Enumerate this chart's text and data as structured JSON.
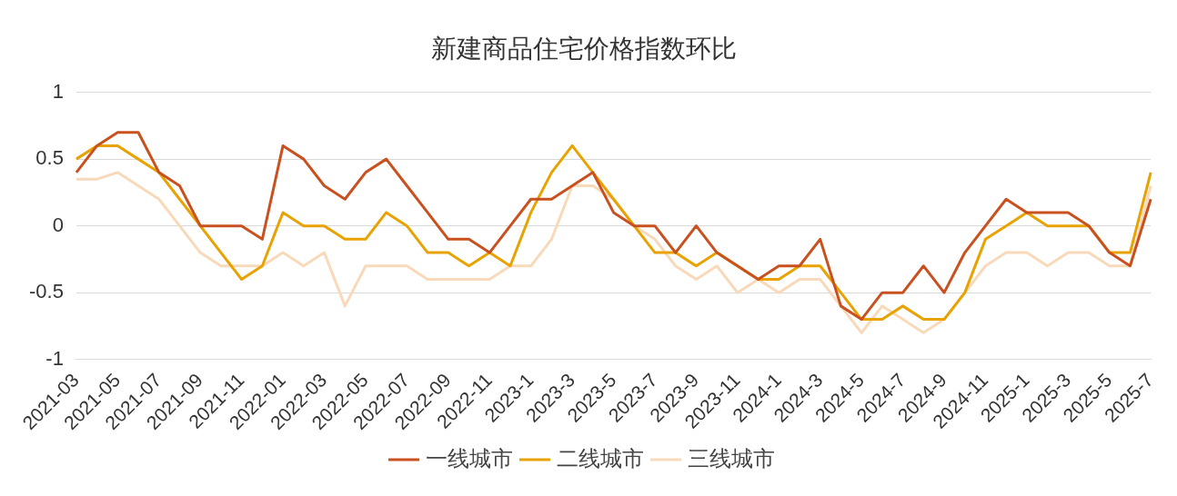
{
  "chart_data": {
    "type": "line",
    "title": "新建商品住宅价格指数环比",
    "categories": [
      "2021-03",
      null,
      "2021-05",
      null,
      "2021-07",
      null,
      "2021-09",
      null,
      "2021-11",
      null,
      "2022-01",
      null,
      "2022-03",
      null,
      "2022-05",
      null,
      "2022-07",
      null,
      "2022-09",
      null,
      "2022-11",
      null,
      "2023-1",
      null,
      "2023-3",
      null,
      "2023-5",
      null,
      "2023-7",
      null,
      "2023-9",
      null,
      "2023-11",
      null,
      "2024-1",
      null,
      "2024-3",
      null,
      "2024-5",
      null,
      "2024-7",
      null,
      "2024-9",
      null,
      "2024-11",
      null,
      "2025-1",
      null,
      "2025-3",
      null,
      "2025-5",
      null,
      "2025-7"
    ],
    "series": [
      {
        "name": "一线城市",
        "color": "#c9511f",
        "values": [
          0.4,
          0.6,
          0.7,
          0.7,
          0.4,
          0.3,
          0,
          0,
          0,
          -0.1,
          0.6,
          0.5,
          0.3,
          0.2,
          0.4,
          0.5,
          0.3,
          0.1,
          -0.1,
          -0.1,
          -0.2,
          0,
          0.2,
          0.2,
          0.3,
          0.4,
          0.1,
          0,
          0,
          -0.2,
          0,
          -0.2,
          -0.3,
          -0.4,
          -0.3,
          -0.3,
          -0.1,
          -0.6,
          -0.7,
          -0.5,
          -0.5,
          -0.3,
          -0.5,
          -0.2,
          0,
          0.2,
          0.1,
          0.1,
          0.1,
          0,
          -0.2,
          -0.3,
          0.2
        ]
      },
      {
        "name": "二线城市",
        "color": "#e8a202",
        "values": [
          0.5,
          0.6,
          0.6,
          0.5,
          0.4,
          0.2,
          0,
          -0.2,
          -0.4,
          -0.3,
          0.1,
          0,
          0,
          -0.1,
          -0.1,
          0.1,
          0,
          -0.2,
          -0.2,
          -0.3,
          -0.2,
          -0.3,
          0.1,
          0.4,
          0.6,
          0.4,
          0.2,
          0,
          -0.2,
          -0.2,
          -0.3,
          -0.2,
          -0.3,
          -0.4,
          -0.4,
          -0.3,
          -0.3,
          -0.5,
          -0.7,
          -0.7,
          -0.6,
          -0.7,
          -0.7,
          -0.5,
          -0.1,
          0,
          0.1,
          0,
          0,
          0,
          -0.2,
          -0.2,
          0.4
        ]
      },
      {
        "name": "三线城市",
        "color": "#f8d9b9",
        "values": [
          0.35,
          0.35,
          0.4,
          0.3,
          0.2,
          0,
          -0.2,
          -0.3,
          -0.3,
          -0.3,
          -0.2,
          -0.3,
          -0.2,
          -0.6,
          -0.3,
          -0.3,
          -0.3,
          -0.4,
          -0.4,
          -0.4,
          -0.4,
          -0.3,
          -0.3,
          -0.1,
          0.3,
          0.3,
          0.2,
          0,
          -0.1,
          -0.3,
          -0.4,
          -0.3,
          -0.5,
          -0.4,
          -0.5,
          -0.4,
          -0.4,
          -0.6,
          -0.8,
          -0.6,
          -0.7,
          -0.8,
          -0.7,
          -0.5,
          -0.3,
          -0.2,
          -0.2,
          -0.3,
          -0.2,
          -0.2,
          -0.3,
          -0.3,
          0.3
        ]
      }
    ],
    "ylim": [
      -1,
      1
    ],
    "yticks": [
      -1,
      -0.5,
      0,
      0.5,
      1
    ],
    "grid": "y",
    "legend": "bottom",
    "marker": "none",
    "line_style": "solid"
  }
}
